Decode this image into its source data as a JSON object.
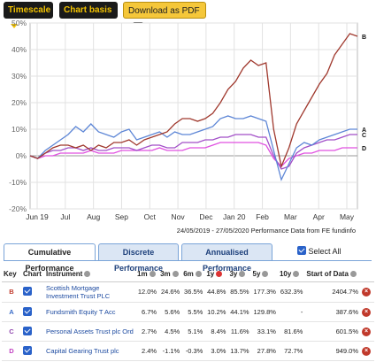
{
  "toolbar": {
    "timescale_label": "Timescale",
    "chart_basis_label": "Chart basis",
    "pdf_label": "Download as PDF"
  },
  "chart_data": {
    "type": "line",
    "y_ticks": [
      "50%",
      "40%",
      "30%",
      "20%",
      "10%",
      "0%",
      "-10%",
      "-20%"
    ],
    "ylim": [
      -20,
      50
    ],
    "x_ticks": [
      "Jun 19",
      "Jul",
      "Aug",
      "Sep",
      "Oct",
      "Nov",
      "Dec",
      "Jan 20",
      "Feb",
      "Mar",
      "Apr",
      "May"
    ],
    "period_label": "24/05/2019 - 27/05/2020 Performance Data from FE fundinfo",
    "grid": true,
    "series": [
      {
        "name": "B",
        "color": "#a0392e",
        "values": [
          0,
          -1,
          1,
          3,
          4,
          4,
          3,
          4,
          2,
          4,
          3,
          5,
          5,
          6,
          4,
          6,
          7,
          8,
          9,
          12,
          14,
          14,
          13,
          14,
          16,
          20,
          25,
          28,
          33,
          36,
          34,
          35,
          10,
          -4,
          3,
          12,
          17,
          22,
          27,
          31,
          38,
          42,
          46,
          45
        ]
      },
      {
        "name": "A",
        "color": "#5d86d6",
        "values": [
          0,
          -1,
          2,
          4,
          6,
          8,
          11,
          9,
          12,
          9,
          8,
          7,
          9,
          10,
          6,
          7,
          8,
          9,
          7,
          9,
          8,
          8,
          9,
          10,
          11,
          14,
          15,
          14,
          14,
          15,
          14,
          13,
          2,
          -9,
          -3,
          3,
          5,
          4,
          6,
          7,
          8,
          9,
          10,
          10
        ]
      },
      {
        "name": "C",
        "color": "#a24fc8",
        "values": [
          0,
          -1,
          1,
          2,
          2,
          3,
          3,
          2,
          3,
          2,
          2,
          3,
          3,
          3,
          2,
          3,
          4,
          4,
          3,
          3,
          5,
          5,
          5,
          6,
          6,
          7,
          7,
          8,
          8,
          8,
          7,
          7,
          0,
          -5,
          -4,
          1,
          3,
          4,
          5,
          6,
          6,
          7,
          8,
          8
        ]
      },
      {
        "name": "D",
        "color": "#e050e0",
        "values": [
          0,
          -1,
          0,
          0,
          1,
          1,
          1,
          1,
          2,
          1,
          1,
          1,
          2,
          2,
          2,
          2,
          2,
          3,
          2,
          2,
          2,
          3,
          3,
          3,
          4,
          5,
          5,
          5,
          5,
          5,
          5,
          4,
          -1,
          -4,
          -1,
          0,
          1,
          1,
          2,
          2,
          2,
          3,
          3,
          3
        ]
      }
    ]
  },
  "tabs": [
    "Cumulative Performance",
    "Discrete Performance",
    "Annualised Performance"
  ],
  "select_all_label": "Select All",
  "table": {
    "headers": {
      "key": "Key",
      "chart": "Chart",
      "instrument": "Instrument",
      "m1": "1m",
      "m3": "3m",
      "m6": "6m",
      "y1": "1y",
      "y3": "3y",
      "y5": "5y",
      "y10": "10y",
      "since": "Start of Data"
    },
    "rows": [
      {
        "key": "B",
        "key_color": "#c0392b",
        "instrument": "Scottish Mortgage Investment Trust PLC",
        "m1": "12.0%",
        "m3": "24.6%",
        "m6": "36.5%",
        "y1": "44.8%",
        "y3": "85.5%",
        "y5": "177.3%",
        "y10": "632.3%",
        "since": "2404.7%"
      },
      {
        "key": "A",
        "key_color": "#3a6cc8",
        "instrument": "Fundsmith Equity T Acc",
        "m1": "6.7%",
        "m3": "5.6%",
        "m6": "5.5%",
        "y1": "10.2%",
        "y3": "44.1%",
        "y5": "129.8%",
        "y10": "-",
        "since": "387.6%"
      },
      {
        "key": "C",
        "key_color": "#8e44ad",
        "instrument": "Personal Assets Trust plc Ord",
        "m1": "2.7%",
        "m3": "4.5%",
        "m6": "5.1%",
        "y1": "8.4%",
        "y3": "11.6%",
        "y5": "33.1%",
        "y10": "81.6%",
        "since": "601.5%"
      },
      {
        "key": "D",
        "key_color": "#c03fc0",
        "instrument": "Capital Gearing Trust plc",
        "m1": "2.4%",
        "m3": "-1.1%",
        "m6": "-0.3%",
        "y1": "3.0%",
        "y3": "13.7%",
        "y5": "27.8%",
        "y10": "72.7%",
        "since": "949.0%"
      }
    ]
  }
}
